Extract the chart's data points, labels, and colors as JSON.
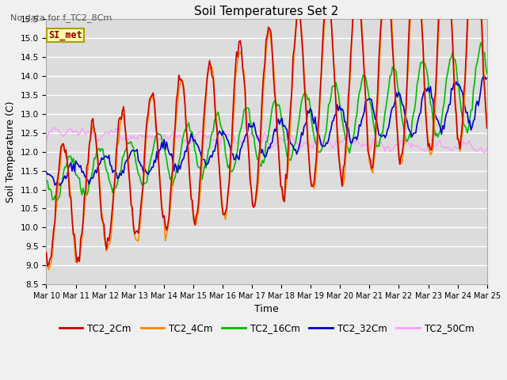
{
  "title": "Soil Temperatures Set 2",
  "no_data_label": "No data for f_TC2_8Cm",
  "xlabel": "Time",
  "ylabel": "Soil Temperature (C)",
  "ylim": [
    8.5,
    15.5
  ],
  "x_tick_labels": [
    "Mar 10",
    "Mar 11",
    "Mar 12",
    "Mar 13",
    "Mar 14",
    "Mar 15",
    "Mar 16",
    "Mar 17",
    "Mar 18",
    "Mar 19",
    "Mar 20",
    "Mar 21",
    "Mar 22",
    "Mar 23",
    "Mar 24",
    "Mar 25"
  ],
  "legend_label": "SI_met",
  "series_colors": {
    "TC2_2Cm": "#cc0000",
    "TC2_4Cm": "#ff8800",
    "TC2_16Cm": "#00bb00",
    "TC2_32Cm": "#0000cc",
    "TC2_50Cm": "#ff99ff"
  },
  "bg_color": "#dcdcdc",
  "plot_bg": "#dcdcdc",
  "fig_bg": "#f0f0f0"
}
